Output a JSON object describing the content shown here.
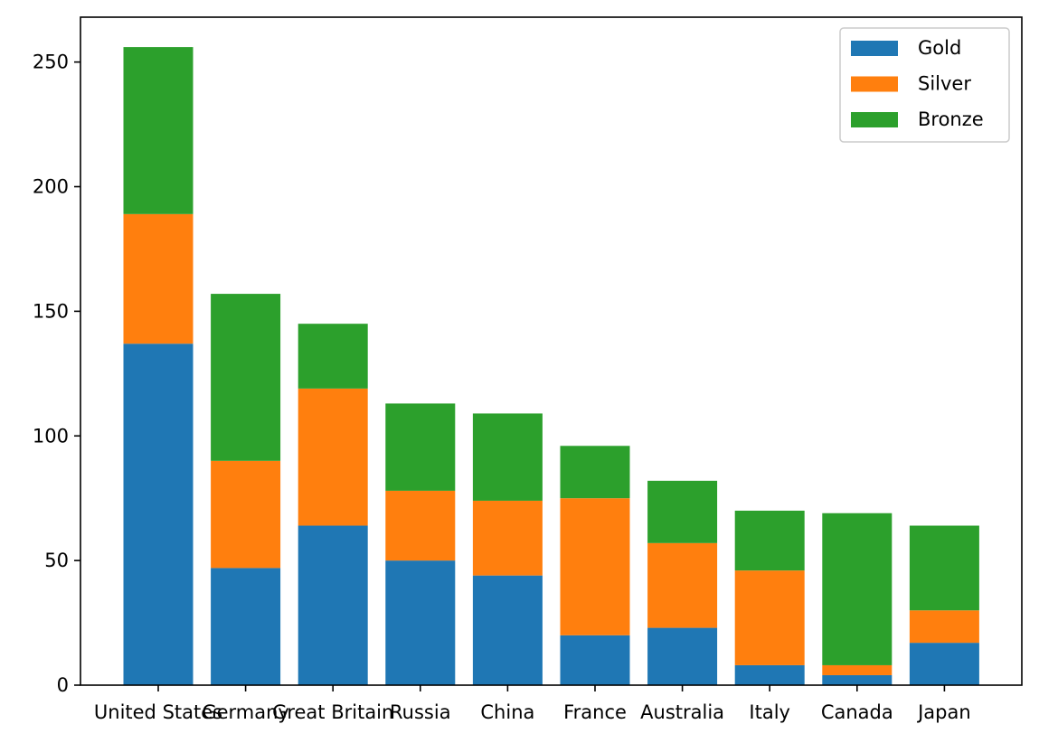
{
  "chart_data": {
    "type": "bar",
    "stacked": true,
    "categories": [
      "United States",
      "Germany",
      "Great Britain",
      "Russia",
      "China",
      "France",
      "Australia",
      "Italy",
      "Canada",
      "Japan"
    ],
    "series": [
      {
        "name": "Gold",
        "color": "#1f77b4",
        "values": [
          137,
          47,
          64,
          50,
          44,
          20,
          23,
          8,
          4,
          17
        ]
      },
      {
        "name": "Silver",
        "color": "#ff7f0e",
        "values": [
          52,
          43,
          55,
          28,
          30,
          55,
          34,
          38,
          4,
          13
        ]
      },
      {
        "name": "Bronze",
        "color": "#2ca02c",
        "values": [
          67,
          67,
          26,
          35,
          35,
          21,
          25,
          24,
          61,
          34
        ]
      }
    ],
    "yticks": [
      0,
      50,
      100,
      150,
      200,
      250
    ],
    "ylim": [
      0,
      268
    ],
    "grid": false,
    "legend_position": "top-right"
  }
}
